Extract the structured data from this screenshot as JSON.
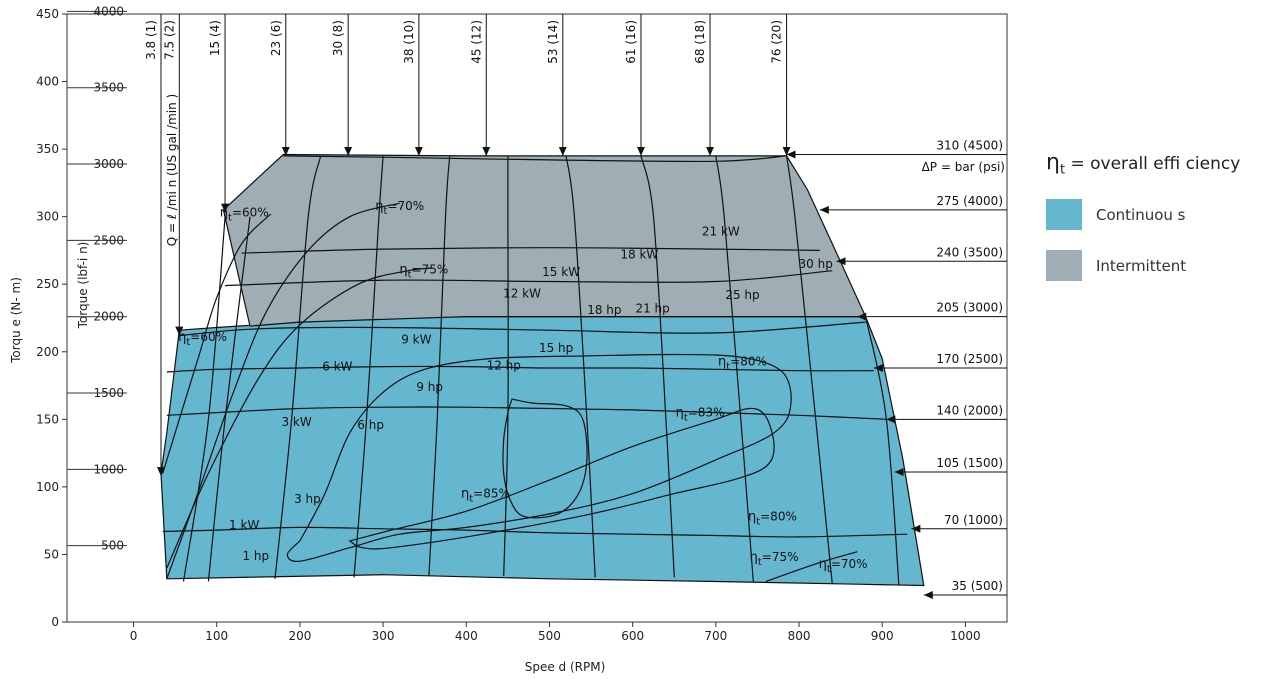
{
  "chart_data": {
    "type": "contour-performance",
    "xlabel": "Spee d (RPM)",
    "ylabel_left": "Torqu e (N- m)",
    "ylabel_right": "Torque (lbf-i n)",
    "x_ticks": [
      0,
      100,
      200,
      300,
      400,
      500,
      600,
      700,
      800,
      900,
      1000
    ],
    "x_range": [
      -80,
      1050
    ],
    "y_nm_ticks": [
      0,
      50,
      100,
      150,
      200,
      250,
      300,
      350,
      400,
      450
    ],
    "y_nm_range": [
      0,
      450
    ],
    "y_lbfin_ticks": [
      500,
      1000,
      1500,
      2000,
      2500,
      3000,
      3500,
      4000
    ],
    "flow_header": "Q = ℓ /mi n (US gal /min )",
    "flow_labels": [
      {
        "label": "3.8 (1)",
        "end_x": 33,
        "end_y": 108
      },
      {
        "label": "7.5 (2)",
        "end_x": 55,
        "end_y": 212
      },
      {
        "label": "15 (4)",
        "end_x": 110,
        "end_y": 303
      },
      {
        "label": "23 (6)",
        "end_x": 183,
        "end_y": 345
      },
      {
        "label": "30 (8)",
        "end_x": 258,
        "end_y": 345
      },
      {
        "label": "38 (10)",
        "end_x": 343,
        "end_y": 345
      },
      {
        "label": "45 (12)",
        "end_x": 424,
        "end_y": 345
      },
      {
        "label": "53 (14)",
        "end_x": 516,
        "end_y": 345
      },
      {
        "label": "61 (16)",
        "end_x": 610,
        "end_y": 345
      },
      {
        "label": "68 (18)",
        "end_x": 693,
        "end_y": 345
      },
      {
        "label": "76 (20)",
        "end_x": 785,
        "end_y": 345
      }
    ],
    "pressure_header": "ΔP = bar (psi)",
    "pressure_labels": [
      {
        "label": "310 (4500)",
        "y": 346,
        "end_x": 785
      },
      {
        "label": "275 (4000)",
        "y": 305,
        "end_x": 825
      },
      {
        "label": "240 (3500)",
        "y": 267,
        "end_x": 845
      },
      {
        "label": "205 (3000)",
        "y": 226,
        "end_x": 870
      },
      {
        "label": "170 (2500)",
        "y": 188,
        "end_x": 890
      },
      {
        "label": "140 (2000)",
        "y": 150,
        "end_x": 905
      },
      {
        "label": "105 (1500)",
        "y": 111,
        "end_x": 915
      },
      {
        "label": "70 (1000)",
        "y": 69,
        "end_x": 935
      },
      {
        "label": "35 (500)",
        "y": 20,
        "end_x": 950
      }
    ],
    "regions": {
      "continuous": {
        "label": "Continuou s",
        "color": "#65b6cf",
        "outline": [
          [
            55,
            216
          ],
          [
            100,
            218
          ],
          [
            200,
            222
          ],
          [
            300,
            225
          ],
          [
            400,
            226
          ],
          [
            500,
            226
          ],
          [
            600,
            226
          ],
          [
            700,
            226
          ],
          [
            800,
            226
          ],
          [
            880,
            226
          ],
          [
            900,
            195
          ],
          [
            925,
            120
          ],
          [
            950,
            27
          ],
          [
            870,
            28
          ],
          [
            700,
            30
          ],
          [
            500,
            32
          ],
          [
            300,
            35
          ],
          [
            40,
            32
          ],
          [
            33,
            110
          ],
          [
            40,
            140
          ]
        ]
      },
      "intermittent": {
        "label": "Intermittent",
        "color": "#9fadb5",
        "outline": [
          [
            180,
            346
          ],
          [
            400,
            345
          ],
          [
            600,
            345
          ],
          [
            785,
            345
          ],
          [
            810,
            320
          ],
          [
            840,
            280
          ],
          [
            880,
            226
          ],
          [
            800,
            226
          ],
          [
            600,
            226
          ],
          [
            400,
            226
          ],
          [
            200,
            222
          ],
          [
            140,
            219
          ],
          [
            108,
            305
          ],
          [
            180,
            346
          ]
        ]
      }
    },
    "power_labels": [
      {
        "text": "1 kW",
        "x": 133,
        "y": 69
      },
      {
        "text": "1 hp",
        "x": 147,
        "y": 46
      },
      {
        "text": "3 kW",
        "x": 196,
        "y": 145
      },
      {
        "text": "3 hp",
        "x": 209,
        "y": 88
      },
      {
        "text": "6 kW",
        "x": 245,
        "y": 186
      },
      {
        "text": "6 hp",
        "x": 285,
        "y": 143
      },
      {
        "text": "9 kW",
        "x": 340,
        "y": 206
      },
      {
        "text": "9 hp",
        "x": 356,
        "y": 171
      },
      {
        "text": "12 hp",
        "x": 445,
        "y": 187
      },
      {
        "text": "12 kW",
        "x": 467,
        "y": 240
      },
      {
        "text": "15 hp",
        "x": 508,
        "y": 200
      },
      {
        "text": "15 kW",
        "x": 514,
        "y": 256
      },
      {
        "text": "18 hp",
        "x": 566,
        "y": 228
      },
      {
        "text": "18 kW",
        "x": 608,
        "y": 269
      },
      {
        "text": "21 hp",
        "x": 624,
        "y": 229
      },
      {
        "text": "21 kW",
        "x": 706,
        "y": 286
      },
      {
        "text": "25 hp",
        "x": 732,
        "y": 239
      },
      {
        "text": "30 hp",
        "x": 820,
        "y": 262
      }
    ],
    "efficiency_labels": [
      {
        "text": "=60%",
        "x": 133,
        "y": 300
      },
      {
        "text": "=70%",
        "x": 320,
        "y": 305
      },
      {
        "text": "=75%",
        "x": 349,
        "y": 258
      },
      {
        "text": "=60%",
        "x": 83,
        "y": 208
      },
      {
        "text": "=80%",
        "x": 732,
        "y": 190
      },
      {
        "text": "=83%",
        "x": 681,
        "y": 152
      },
      {
        "text": "=85%",
        "x": 423,
        "y": 92
      },
      {
        "text": "=80%",
        "x": 768,
        "y": 75
      },
      {
        "text": "=75%",
        "x": 770,
        "y": 45
      },
      {
        "text": "=70%",
        "x": 853,
        "y": 40
      }
    ],
    "efficiency_contours": [
      {
        "name": "85",
        "points": [
          [
            455,
            165
          ],
          [
            480,
            162
          ],
          [
            520,
            160
          ],
          [
            540,
            150
          ],
          [
            545,
            120
          ],
          [
            535,
            95
          ],
          [
            510,
            80
          ],
          [
            470,
            78
          ],
          [
            453,
            90
          ],
          [
            445,
            110
          ],
          [
            445,
            135
          ],
          [
            450,
            155
          ],
          [
            455,
            165
          ]
        ]
      },
      {
        "name": "83",
        "points": [
          [
            260,
            60
          ],
          [
            310,
            68
          ],
          [
            400,
            82
          ],
          [
            500,
            105
          ],
          [
            600,
            130
          ],
          [
            700,
            150
          ],
          [
            740,
            158
          ],
          [
            760,
            152
          ],
          [
            770,
            130
          ],
          [
            760,
            115
          ],
          [
            720,
            105
          ],
          [
            650,
            95
          ],
          [
            550,
            80
          ],
          [
            420,
            65
          ],
          [
            310,
            55
          ],
          [
            275,
            55
          ],
          [
            260,
            60
          ]
        ]
      },
      {
        "name": "80",
        "points": [
          [
            200,
            60
          ],
          [
            230,
            95
          ],
          [
            260,
            140
          ],
          [
            300,
            170
          ],
          [
            350,
            187
          ],
          [
            430,
            195
          ],
          [
            550,
            197
          ],
          [
            650,
            198
          ],
          [
            730,
            196
          ],
          [
            780,
            185
          ],
          [
            790,
            160
          ],
          [
            770,
            140
          ],
          [
            700,
            120
          ],
          [
            600,
            95
          ],
          [
            500,
            80
          ],
          [
            400,
            70
          ],
          [
            320,
            65
          ],
          [
            260,
            55
          ],
          [
            200,
            45
          ],
          [
            185,
            50
          ],
          [
            200,
            60
          ]
        ]
      },
      {
        "name": "75",
        "points": [
          [
            40,
            40
          ],
          [
            90,
            110
          ],
          [
            150,
            180
          ],
          [
            200,
            220
          ],
          [
            270,
            250
          ],
          [
            330,
            260
          ],
          [
            360,
            262
          ]
        ]
      },
      {
        "name": "70",
        "points": [
          [
            40,
            32
          ],
          [
            80,
            100
          ],
          [
            120,
            170
          ],
          [
            160,
            230
          ],
          [
            210,
            275
          ],
          [
            260,
            300
          ],
          [
            320,
            310
          ]
        ]
      },
      {
        "name": "60",
        "points": [
          [
            35,
            110
          ],
          [
            55,
            150
          ],
          [
            80,
            200
          ],
          [
            100,
            240
          ],
          [
            130,
            280
          ],
          [
            165,
            302
          ]
        ]
      },
      {
        "name": "75r",
        "points": [
          [
            760,
            30
          ],
          [
            820,
            43
          ],
          [
            870,
            52
          ]
        ]
      }
    ],
    "power_contours": [
      {
        "name": "1 kW",
        "points": [
          [
            35,
            67
          ],
          [
            100,
            68
          ],
          [
            200,
            70
          ],
          [
            300,
            69
          ],
          [
            400,
            68
          ],
          [
            500,
            66
          ],
          [
            600,
            65
          ],
          [
            700,
            64
          ],
          [
            800,
            63
          ],
          [
            930,
            65
          ]
        ]
      },
      {
        "name": "3 kW",
        "points": [
          [
            40,
            153
          ],
          [
            100,
            155
          ],
          [
            200,
            158
          ],
          [
            300,
            159
          ],
          [
            400,
            159
          ],
          [
            500,
            158
          ],
          [
            600,
            157
          ],
          [
            700,
            155
          ],
          [
            800,
            153
          ],
          [
            905,
            150
          ]
        ]
      },
      {
        "name": "6 kW",
        "points": [
          [
            40,
            185
          ],
          [
            100,
            187
          ],
          [
            200,
            188
          ],
          [
            300,
            189
          ],
          [
            400,
            189
          ],
          [
            500,
            188
          ],
          [
            600,
            188
          ],
          [
            700,
            187
          ],
          [
            800,
            186
          ],
          [
            890,
            186
          ]
        ]
      },
      {
        "name": "9 kW",
        "points": [
          [
            55,
            212
          ],
          [
            150,
            217
          ],
          [
            300,
            218
          ],
          [
            500,
            216
          ],
          [
            700,
            214
          ],
          [
            880,
            222
          ]
        ]
      },
      {
        "name": "12 kW",
        "points": [
          [
            110,
            249
          ],
          [
            300,
            253
          ],
          [
            500,
            252
          ],
          [
            700,
            252
          ],
          [
            840,
            260
          ]
        ]
      },
      {
        "name": "15 kW",
        "points": [
          [
            130,
            273
          ],
          [
            300,
            276
          ],
          [
            500,
            277
          ],
          [
            700,
            276
          ],
          [
            825,
            275
          ]
        ]
      },
      {
        "name": "18 kW",
        "points": [
          [
            180,
            345
          ],
          [
            300,
            344
          ],
          [
            500,
            342
          ],
          [
            700,
            341
          ],
          [
            785,
            345
          ]
        ]
      }
    ],
    "speed_lines": [
      {
        "points": [
          [
            60,
            30
          ],
          [
            90,
            150
          ],
          [
            110,
            300
          ]
        ]
      },
      {
        "points": [
          [
            90,
            30
          ],
          [
            110,
            150
          ],
          [
            140,
            300
          ]
        ]
      },
      {
        "points": [
          [
            170,
            32
          ],
          [
            190,
            150
          ],
          [
            210,
            300
          ],
          [
            225,
            345
          ]
        ]
      },
      {
        "points": [
          [
            265,
            33
          ],
          [
            280,
            150
          ],
          [
            295,
            300
          ],
          [
            300,
            345
          ]
        ]
      },
      {
        "points": [
          [
            355,
            34
          ],
          [
            365,
            150
          ],
          [
            375,
            300
          ],
          [
            380,
            345
          ]
        ]
      },
      {
        "points": [
          [
            445,
            34
          ],
          [
            450,
            150
          ],
          [
            450,
            300
          ],
          [
            450,
            345
          ]
        ]
      },
      {
        "points": [
          [
            555,
            33
          ],
          [
            545,
            150
          ],
          [
            530,
            300
          ],
          [
            520,
            345
          ]
        ]
      },
      {
        "points": [
          [
            650,
            33
          ],
          [
            640,
            150
          ],
          [
            625,
            300
          ],
          [
            610,
            345
          ]
        ]
      },
      {
        "points": [
          [
            745,
            30
          ],
          [
            730,
            150
          ],
          [
            710,
            300
          ],
          [
            700,
            345
          ]
        ]
      },
      {
        "points": [
          [
            840,
            28
          ],
          [
            820,
            150
          ],
          [
            795,
            300
          ],
          [
            785,
            345
          ]
        ]
      },
      {
        "points": [
          [
            920,
            27
          ],
          [
            905,
            150
          ],
          [
            880,
            226
          ]
        ]
      }
    ],
    "legend": {
      "title_prefix": "η",
      "title_sub": "t",
      "title_suffix": " = overall effi ciency",
      "items": [
        {
          "label": "Continuou s",
          "color": "#65b6cf"
        },
        {
          "label": "Intermittent",
          "color": "#9fadb5"
        }
      ]
    }
  }
}
